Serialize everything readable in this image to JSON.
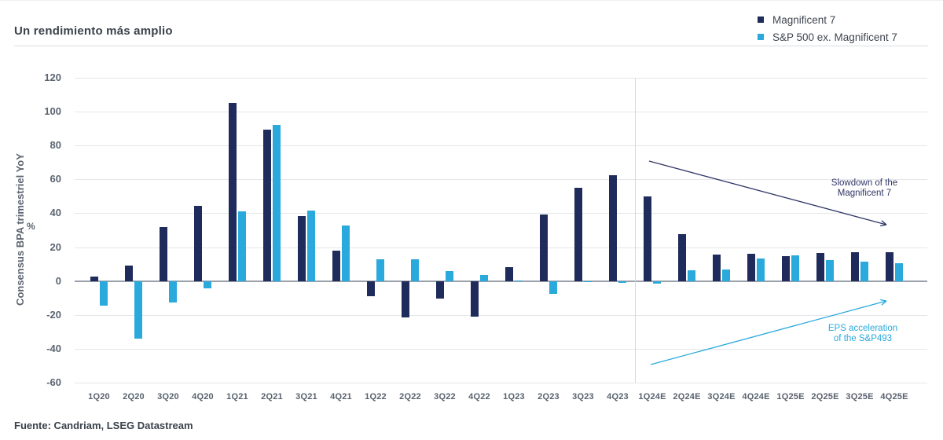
{
  "header": {
    "title": "Un rendimiento más amplio"
  },
  "legend": {
    "items": [
      {
        "label": "Magnificent 7",
        "color": "#1f2b5b"
      },
      {
        "label": "S&P 500 ex. Magnificent 7",
        "color": "#29a9dc"
      }
    ]
  },
  "chart_data": {
    "type": "bar",
    "title": "Un rendimiento más amplio",
    "ylabel": "Consensus BPA trimestriel YoY",
    "ylabel_unit": "%",
    "ylim": [
      -60,
      120
    ],
    "ytick_step": 20,
    "grid": true,
    "legend_position": "top-right",
    "categories": [
      "1Q20",
      "2Q20",
      "3Q20",
      "4Q20",
      "1Q21",
      "2Q21",
      "3Q21",
      "4Q21",
      "1Q22",
      "2Q22",
      "3Q22",
      "4Q22",
      "1Q23",
      "2Q23",
      "3Q23",
      "4Q23",
      "1Q24E",
      "2Q24E",
      "3Q24E",
      "4Q24E",
      "1Q25E",
      "2Q25E",
      "3Q25E",
      "4Q25E"
    ],
    "series": [
      {
        "name": "Magnificent 7",
        "color": "#1f2b5b",
        "values": [
          2.5,
          9,
          32,
          44.5,
          105,
          89.5,
          38.5,
          18,
          -9,
          -21.5,
          -10.5,
          -21,
          8,
          39.5,
          55,
          62.5,
          50,
          27.5,
          15.5,
          16,
          14.5,
          16.5,
          17,
          17
        ]
      },
      {
        "name": "S&P 500 ex. Magnificent 7",
        "color": "#29a9dc",
        "values": [
          -14.5,
          -34,
          -12.5,
          -4.5,
          41,
          92,
          41.5,
          33,
          13,
          13,
          6,
          3.5,
          0.5,
          -7.5,
          -0.5,
          -1,
          -1.5,
          6.5,
          7,
          13.5,
          15,
          12.5,
          11.5,
          10.5
        ]
      }
    ],
    "separator_after_category": "4Q23",
    "annotations": [
      {
        "lines": [
          "Slowdown of the",
          "Magnificent 7"
        ],
        "color": "#2f3566",
        "arrow": {
          "from": [
            826,
            204
          ],
          "to": [
            1128,
            285
          ]
        }
      },
      {
        "lines": [
          "EPS acceleration",
          "of the S&P493"
        ],
        "color": "#29a9dc",
        "arrow": {
          "from": [
            828,
            463
          ],
          "to": [
            1128,
            382
          ]
        }
      }
    ]
  },
  "footer": {
    "source": "Fuente: Candriam, LSEG Datastream"
  }
}
